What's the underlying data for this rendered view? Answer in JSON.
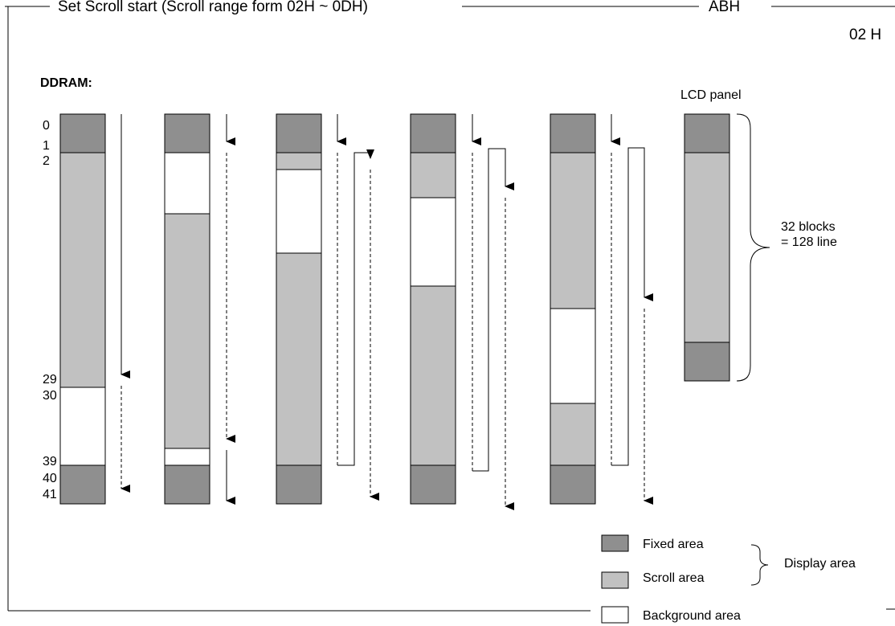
{
  "header": {
    "title": "Set Scroll start (Scroll range form 02H ~ 0DH)",
    "code": "ABH",
    "value": "02 H"
  },
  "ddram_label": "DDRAM:",
  "row_labels": [
    "0",
    "1",
    "2",
    "29",
    "30",
    "39",
    "40",
    "41"
  ],
  "lcd_panel": {
    "title": "LCD panel",
    "brace_label_line1": "32 blocks",
    "brace_label_line2": "= 128 line"
  },
  "legend": {
    "fixed": "Fixed area",
    "scroll": "Scroll area",
    "background": "Background area",
    "display_group": "Display area"
  },
  "colors": {
    "fixed": "#8f8f8f",
    "scroll": "#c1c1c1",
    "background": "#ffffff",
    "line": "#000000"
  }
}
